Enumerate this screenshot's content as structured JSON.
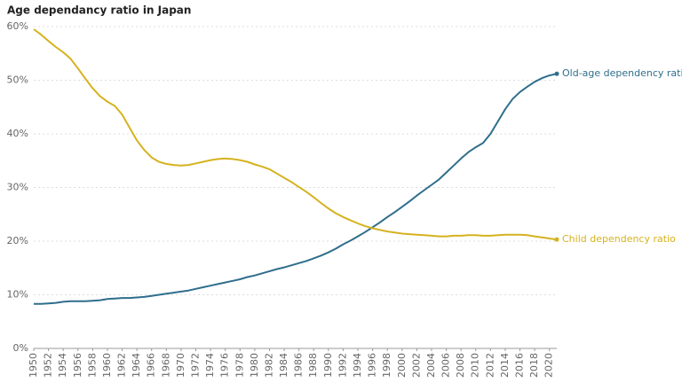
{
  "chart_data": {
    "type": "line",
    "title": "Age dependancy ratio in Japan",
    "x": [
      1950,
      1951,
      1952,
      1953,
      1954,
      1955,
      1956,
      1957,
      1958,
      1959,
      1960,
      1961,
      1962,
      1963,
      1964,
      1965,
      1966,
      1967,
      1968,
      1969,
      1970,
      1971,
      1972,
      1973,
      1974,
      1975,
      1976,
      1977,
      1978,
      1979,
      1980,
      1981,
      1982,
      1983,
      1984,
      1985,
      1986,
      1987,
      1988,
      1989,
      1990,
      1991,
      1992,
      1993,
      1994,
      1995,
      1996,
      1997,
      1998,
      1999,
      2000,
      2001,
      2002,
      2003,
      2004,
      2005,
      2006,
      2007,
      2008,
      2009,
      2010,
      2011,
      2012,
      2013,
      2014,
      2015,
      2016,
      2017,
      2018,
      2019,
      2020,
      2021
    ],
    "series": [
      {
        "name": "Old-age dependency ratio",
        "color": "#2f6e8c",
        "values": [
          8.3,
          8.3,
          8.4,
          8.5,
          8.7,
          8.8,
          8.8,
          8.8,
          8.9,
          9.0,
          9.2,
          9.3,
          9.4,
          9.4,
          9.5,
          9.6,
          9.8,
          10.0,
          10.2,
          10.4,
          10.6,
          10.8,
          11.1,
          11.4,
          11.7,
          12.0,
          12.3,
          12.6,
          12.9,
          13.3,
          13.6,
          14.0,
          14.4,
          14.8,
          15.1,
          15.5,
          15.9,
          16.3,
          16.8,
          17.3,
          17.9,
          18.6,
          19.4,
          20.1,
          20.9,
          21.7,
          22.6,
          23.5,
          24.5,
          25.4,
          26.4,
          27.4,
          28.5,
          29.5,
          30.5,
          31.5,
          32.8,
          34.1,
          35.4,
          36.6,
          37.5,
          38.3,
          40.0,
          42.3,
          44.6,
          46.5,
          47.8,
          48.8,
          49.7,
          50.4,
          50.9,
          51.2
        ]
      },
      {
        "name": "Child dependency ratio",
        "color": "#d6b21e",
        "values": [
          59.5,
          58.5,
          57.3,
          56.2,
          55.2,
          54.0,
          52.2,
          50.3,
          48.5,
          47.0,
          46.0,
          45.2,
          43.6,
          41.2,
          38.8,
          37.0,
          35.6,
          34.8,
          34.4,
          34.2,
          34.1,
          34.2,
          34.5,
          34.8,
          35.1,
          35.3,
          35.4,
          35.3,
          35.1,
          34.8,
          34.3,
          33.9,
          33.4,
          32.6,
          31.8,
          31.0,
          30.1,
          29.2,
          28.2,
          27.1,
          26.1,
          25.2,
          24.5,
          23.9,
          23.3,
          22.8,
          22.4,
          22.1,
          21.8,
          21.6,
          21.4,
          21.3,
          21.2,
          21.1,
          21.0,
          20.9,
          20.9,
          21.0,
          21.0,
          21.1,
          21.1,
          21.0,
          21.0,
          21.1,
          21.2,
          21.2,
          21.2,
          21.1,
          20.9,
          20.7,
          20.5,
          20.3
        ]
      }
    ],
    "xlim": [
      1950,
      2021
    ],
    "xticks": [
      1950,
      1952,
      1954,
      1956,
      1958,
      1960,
      1962,
      1964,
      1966,
      1968,
      1970,
      1972,
      1974,
      1976,
      1978,
      1980,
      1982,
      1984,
      1986,
      1988,
      1990,
      1992,
      1994,
      1996,
      1998,
      2000,
      2002,
      2004,
      2006,
      2008,
      2010,
      2012,
      2014,
      2016,
      2018,
      2020
    ],
    "ylim": [
      0,
      60
    ],
    "yticks": [
      {
        "value": 0,
        "label": "0%"
      },
      {
        "value": 10,
        "label": "10%"
      },
      {
        "value": 20,
        "label": "20%"
      },
      {
        "value": 30,
        "label": "30%"
      },
      {
        "value": 40,
        "label": "40%"
      },
      {
        "value": 50,
        "label": "50%"
      },
      {
        "value": 60,
        "label": "60%"
      }
    ],
    "grid": true
  }
}
